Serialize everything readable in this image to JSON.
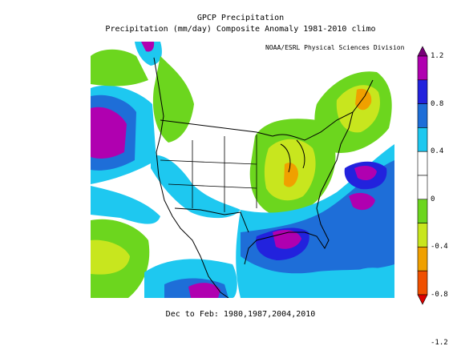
{
  "title": "GPCP Precipitation",
  "subtitle": "Precipitation (mm/day) Composite Anomaly 1981-2010 climo",
  "credit": "NOAA/ESRL Physical Sciences Division",
  "footer": "Dec to Feb: 1980,1987,2004,2010",
  "colorbar": {
    "ticks": [
      "1.2",
      "0.8",
      "0.4",
      "0",
      "-0.4",
      "-0.8",
      "-1.2"
    ],
    "bins": [
      {
        "color": "#780078"
      },
      {
        "color": "#b000b0"
      },
      {
        "color": "#2222dd"
      },
      {
        "color": "#1e6ed8"
      },
      {
        "color": "#1ec8f0"
      },
      {
        "color": "#ffffff"
      },
      {
        "color": "#ffffff"
      },
      {
        "color": "#6cd61e"
      },
      {
        "color": "#c8e61e"
      },
      {
        "color": "#f0a000"
      },
      {
        "color": "#f05000"
      },
      {
        "color": "#dc0000"
      }
    ]
  },
  "palette": {
    "cyan": "#1ec8f0",
    "blue": "#1e6ed8",
    "darkblue": "#2222dd",
    "magenta": "#b000b0",
    "green": "#6cd61e",
    "yellowgreen": "#c8e61e",
    "orange": "#f0a000"
  }
}
